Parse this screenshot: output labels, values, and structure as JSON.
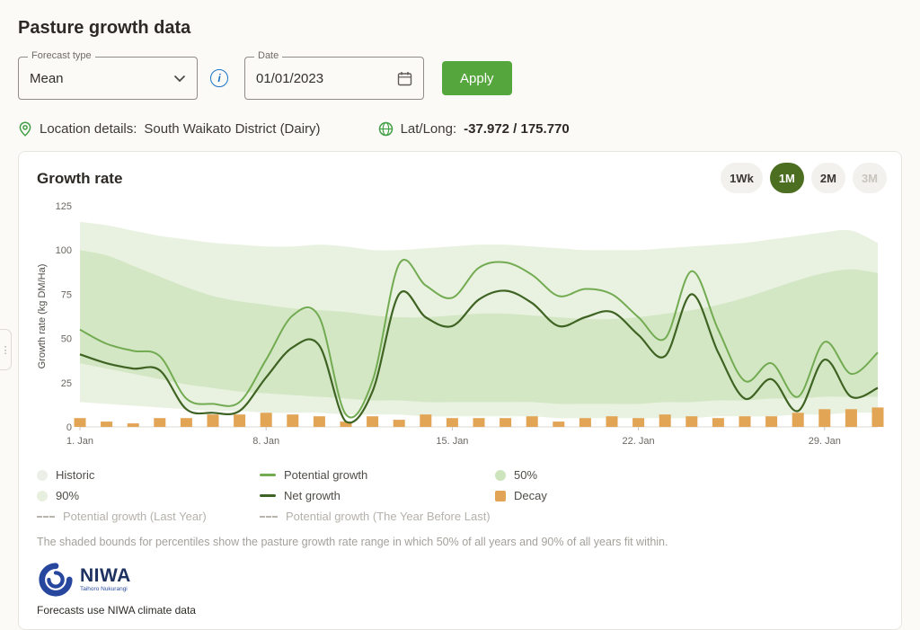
{
  "page": {
    "title": "Pasture growth data"
  },
  "controls": {
    "forecast_type": {
      "label": "Forecast type",
      "value": "Mean"
    },
    "date": {
      "label": "Date",
      "value": "01/01/2023"
    },
    "apply_label": "Apply"
  },
  "location": {
    "details_label": "Location details:",
    "details_value": "South Waikato District (Dairy)",
    "latlong_label": "Lat/Long:",
    "latlong_value": "-37.972 / 175.770"
  },
  "chart_card": {
    "title": "Growth rate",
    "ranges": [
      {
        "label": "1Wk",
        "state": "normal"
      },
      {
        "label": "1M",
        "state": "selected"
      },
      {
        "label": "2M",
        "state": "normal"
      },
      {
        "label": "3M",
        "state": "disabled"
      }
    ],
    "footnote": "The shaded bounds for percentiles show the pasture growth rate range in which 50% of all years and 90% of all years fit within.",
    "logo": {
      "name": "NIWA",
      "subtext": "Taihoro Nukurangi"
    },
    "attribution": "Forecasts use NIWA climate data"
  },
  "legend": {
    "items": [
      {
        "label": "Historic",
        "swatch": "dot",
        "color": "#eceee8",
        "muted": false
      },
      {
        "label": "Potential growth",
        "swatch": "line",
        "color": "#72ab51",
        "muted": false
      },
      {
        "label": "50%",
        "swatch": "dot",
        "color": "#cde4bd",
        "muted": false
      },
      {
        "label": "90%",
        "swatch": "dot",
        "color": "#e7f0de",
        "muted": false
      },
      {
        "label": "Net growth",
        "swatch": "line",
        "color": "#3e6322",
        "muted": false
      },
      {
        "label": "Decay",
        "swatch": "square",
        "color": "#e2a455",
        "muted": false
      },
      {
        "label": "Potential growth (Last Year)",
        "swatch": "dash",
        "color": "#b8b4ae",
        "muted": true
      },
      {
        "label": "Potential growth (The Year Before Last)",
        "swatch": "dash",
        "color": "#b8b4ae",
        "muted": true
      }
    ]
  },
  "icons": {
    "info_glyph": "i",
    "drawer_glyph": "⋮"
  },
  "colors": {
    "accent_green": "#56a63e",
    "selected_range": "#4b6e21",
    "band90": "#e9f2e0",
    "band50": "#d4e7c5",
    "potential": "#72ab51",
    "net": "#3e6322",
    "decay": "#e2a455",
    "info_blue": "#1a73c7",
    "location_green": "#43a047",
    "niwa_blue": "#27479e",
    "axis_text": "#6b6762",
    "baseline": "#dcd8d2"
  },
  "chart_data": {
    "type": "area",
    "title": "Growth rate",
    "ylabel": "Growth rate (kg DM/Ha)",
    "ylim": [
      0,
      125
    ],
    "yticks": [
      0,
      25,
      50,
      75,
      100,
      125
    ],
    "x_range": [
      1,
      31
    ],
    "xticks": [
      {
        "day": 1,
        "label": "1. Jan"
      },
      {
        "day": 8,
        "label": "8. Jan"
      },
      {
        "day": 15,
        "label": "15. Jan"
      },
      {
        "day": 22,
        "label": "22. Jan"
      },
      {
        "day": 29,
        "label": "29. Jan"
      }
    ],
    "days": [
      1,
      2,
      3,
      4,
      5,
      6,
      7,
      8,
      9,
      10,
      11,
      12,
      13,
      14,
      15,
      16,
      17,
      18,
      19,
      20,
      21,
      22,
      23,
      24,
      25,
      26,
      27,
      28,
      29,
      30,
      31
    ],
    "band90": {
      "name": "90%",
      "upper": [
        116,
        114,
        111,
        108,
        106,
        104,
        103,
        102,
        102,
        103,
        102,
        100,
        100,
        101,
        102,
        103,
        103,
        102,
        101,
        100,
        100,
        100,
        101,
        102,
        103,
        104,
        106,
        108,
        110,
        111,
        104
      ],
      "lower": [
        14,
        13,
        12,
        11,
        10,
        9,
        9,
        8,
        8,
        8,
        7,
        7,
        7,
        6,
        6,
        6,
        6,
        6,
        5,
        5,
        5,
        5,
        5,
        5,
        6,
        6,
        6,
        7,
        7,
        8,
        8
      ]
    },
    "band50": {
      "name": "50%",
      "upper": [
        100,
        97,
        91,
        85,
        79,
        74,
        71,
        69,
        67,
        66,
        65,
        63,
        62,
        62,
        63,
        64,
        64,
        63,
        62,
        61,
        61,
        62,
        64,
        66,
        69,
        73,
        78,
        83,
        87,
        89,
        87
      ],
      "lower": [
        36,
        33,
        30,
        27,
        24,
        22,
        20,
        19,
        18,
        17,
        16,
        15,
        15,
        14,
        14,
        14,
        14,
        14,
        13,
        13,
        13,
        13,
        14,
        14,
        15,
        15,
        16,
        16,
        17,
        17,
        17
      ]
    },
    "series": [
      {
        "name": "Potential growth",
        "type": "line",
        "values": [
          55,
          47,
          43,
          40,
          16,
          13,
          14,
          38,
          63,
          62,
          7,
          26,
          92,
          80,
          73,
          90,
          93,
          86,
          74,
          78,
          75,
          62,
          50,
          88,
          55,
          26,
          36,
          17,
          48,
          30,
          42
        ]
      },
      {
        "name": "Net growth",
        "type": "line",
        "values": [
          41,
          36,
          33,
          32,
          10,
          8,
          9,
          28,
          45,
          46,
          3,
          20,
          75,
          62,
          57,
          72,
          77,
          70,
          57,
          62,
          65,
          52,
          40,
          75,
          42,
          16,
          27,
          9,
          38,
          17,
          22
        ]
      },
      {
        "name": "Decay",
        "type": "bar",
        "values": [
          5,
          3,
          2,
          5,
          5,
          7,
          7,
          8,
          7,
          6,
          3,
          6,
          4,
          7,
          5,
          5,
          5,
          6,
          3,
          5,
          6,
          5,
          7,
          6,
          5,
          6,
          6,
          8,
          10,
          10,
          11
        ]
      }
    ]
  }
}
